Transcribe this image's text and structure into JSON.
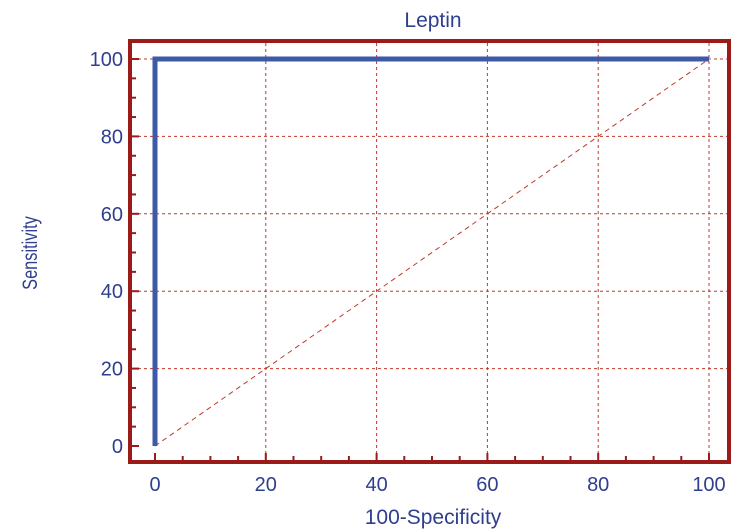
{
  "chart_data": {
    "type": "line",
    "title": "Leptin",
    "xlabel": "100-Specificity",
    "ylabel": "Sensitivity",
    "xlim": [
      0,
      100
    ],
    "ylim": [
      0,
      100
    ],
    "x_ticks": [
      "0",
      "20",
      "40",
      "60",
      "80",
      "100"
    ],
    "y_ticks": [
      "0",
      "20",
      "40",
      "60",
      "80",
      "100"
    ],
    "grid": true,
    "series": [
      {
        "x": [
          0,
          0,
          100
        ],
        "y": [
          0,
          100,
          100
        ]
      }
    ],
    "reference_line": {
      "x": [
        0,
        100
      ],
      "y": [
        0,
        100
      ]
    },
    "colors": {
      "frame": "#9b1b1b",
      "grid": "#c0392b",
      "curve": "#3c5aa8",
      "text": "#2f3f8f"
    }
  }
}
